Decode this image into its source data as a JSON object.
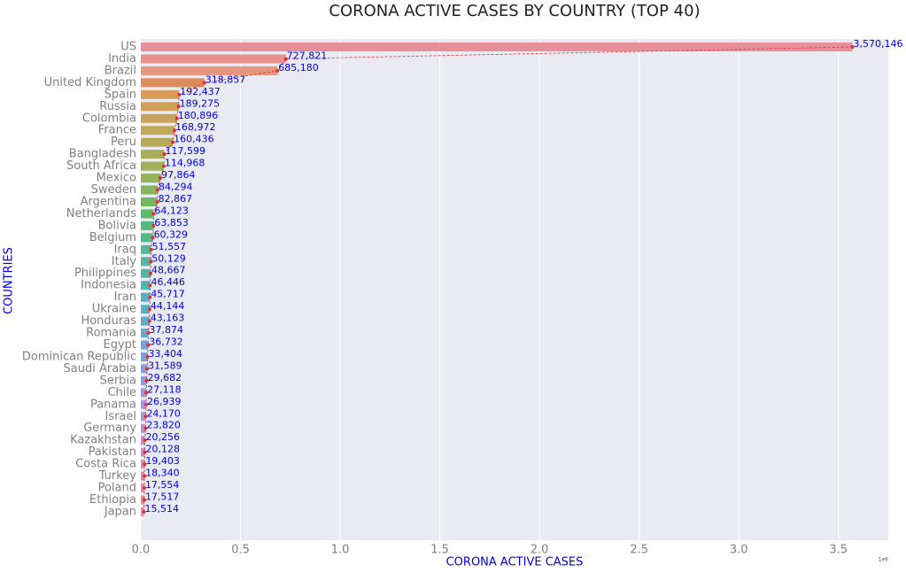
{
  "chart_data": {
    "type": "bar",
    "orientation": "horizontal",
    "title": "CORONA ACTIVE CASES BY COUNTRY (TOP 40)",
    "x_label": "CORONA ACTIVE CASES",
    "y_label": "COUNTRIES",
    "x_offset_label": "1e6",
    "categories": [
      "US",
      "India",
      "Brazil",
      "United Kingdom",
      "Spain",
      "Russia",
      "Colombia",
      "France",
      "Peru",
      "Bangladesh",
      "South Africa",
      "Mexico",
      "Sweden",
      "Argentina",
      "Netherlands",
      "Bolivia",
      "Belgium",
      "Iraq",
      "Italy",
      "Philippines",
      "Indonesia",
      "Iran",
      "Ukraine",
      "Honduras",
      "Romania",
      "Egypt",
      "Dominican Republic",
      "Saudi Arabia",
      "Serbia",
      "Chile",
      "Panama",
      "Israel",
      "Germany",
      "Kazakhstan",
      "Pakistan",
      "Costa Rica",
      "Turkey",
      "Poland",
      "Ethiopia",
      "Japan"
    ],
    "values": [
      3570146,
      727821,
      685180,
      318857,
      192437,
      189275,
      180896,
      168972,
      160436,
      117599,
      114968,
      97864,
      84294,
      82867,
      64123,
      63853,
      60329,
      51557,
      50129,
      48667,
      46446,
      45717,
      44144,
      43163,
      37874,
      36732,
      33404,
      31589,
      29682,
      27118,
      26939,
      24170,
      23820,
      20256,
      20128,
      19403,
      18340,
      17554,
      17517,
      15514
    ],
    "value_labels": [
      "3,570,146",
      "727,821",
      "685,180",
      "318,857",
      "192,437",
      "189,275",
      "180,896",
      "168,972",
      "160,436",
      "117,599",
      "114,968",
      "97,864",
      "84,294",
      "82,867",
      "64,123",
      "63,853",
      "60,329",
      "51,557",
      "50,129",
      "48,667",
      "46,446",
      "45,717",
      "44,144",
      "43,163",
      "37,874",
      "36,732",
      "33,404",
      "31,589",
      "29,682",
      "27,118",
      "26,939",
      "24,170",
      "23,820",
      "20,256",
      "20,128",
      "19,403",
      "18,340",
      "17,554",
      "17,517",
      "15,514"
    ],
    "colors": [
      "#e8909a",
      "#e8928c",
      "#e6967e",
      "#de8b5c",
      "#d99c5c",
      "#d0a05a",
      "#c8a55a",
      "#bfa85a",
      "#b5ab5a",
      "#aaae5a",
      "#9eb05a",
      "#91b35a",
      "#83b65c",
      "#72b85e",
      "#5cba68",
      "#58b97e",
      "#57b78c",
      "#56b698",
      "#56b4a2",
      "#56b3ab",
      "#57b2b3",
      "#58b1bb",
      "#5aafc3",
      "#5eadca",
      "#63aad2",
      "#6aa7d8",
      "#74a3de",
      "#80a0e0",
      "#8c9ce2",
      "#989ae2",
      "#a497e0",
      "#b094dc",
      "#bb91d6",
      "#c58fce",
      "#cd8dc4",
      "#d48cb9",
      "#da8cae",
      "#de8ca5",
      "#e18e9e",
      "#e38f98"
    ],
    "line_color": "#e03030",
    "label_color": "#0000ee",
    "xlim": [
      0,
      3750000
    ],
    "xticks": [
      {
        "value": 0,
        "label": "0.0"
      },
      {
        "value": 500000,
        "label": "0.5"
      },
      {
        "value": 1000000,
        "label": "1.0"
      },
      {
        "value": 1500000,
        "label": "1.5"
      },
      {
        "value": 2000000,
        "label": "2.0"
      },
      {
        "value": 2500000,
        "label": "2.5"
      },
      {
        "value": 3000000,
        "label": "3.0"
      },
      {
        "value": 3500000,
        "label": "3.5"
      }
    ],
    "grid": true
  }
}
